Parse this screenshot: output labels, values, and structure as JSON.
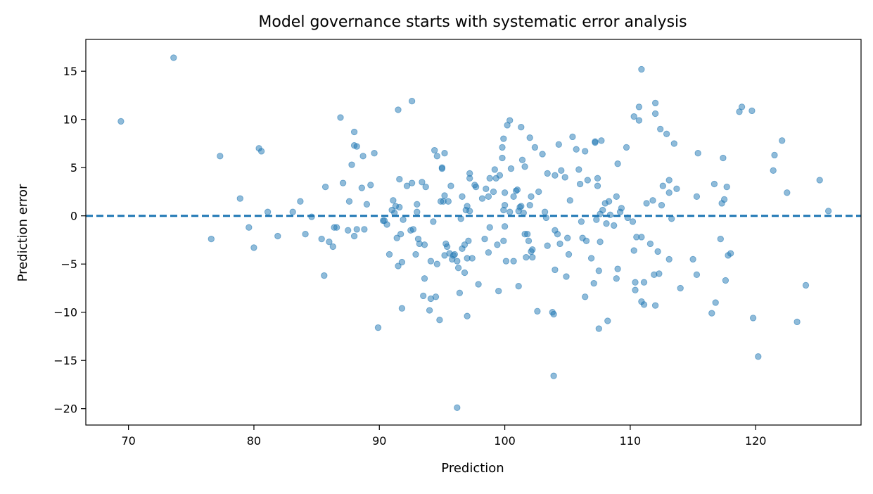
{
  "chart_data": {
    "type": "scatter",
    "title": "Model governance starts with systematic error analysis",
    "xlabel": "Prediction",
    "ylabel": "Prediction error",
    "xlim": [
      66.6,
      128.4
    ],
    "ylim": [
      -21.7,
      18.3
    ],
    "xticks": [
      70,
      80,
      90,
      100,
      110,
      120
    ],
    "yticks": [
      15,
      10,
      5,
      0,
      -5,
      -10,
      -15,
      -20
    ],
    "xtick_labels": [
      "70",
      "80",
      "90",
      "100",
      "110",
      "120"
    ],
    "ytick_labels": [
      "15",
      "10",
      "5",
      "0",
      "−5",
      "−10",
      "−15",
      "−20"
    ],
    "reference_line": {
      "y": 0,
      "style": "dashed"
    },
    "colors": {
      "points": "#1f77b4",
      "reference_line": "#1f77b4"
    },
    "grid": false,
    "legend": "none",
    "points": [
      [
        69.4,
        9.8
      ],
      [
        73.6,
        16.4
      ],
      [
        76.6,
        -2.4
      ],
      [
        77.3,
        6.2
      ],
      [
        78.9,
        1.8
      ],
      [
        79.6,
        -1.2
      ],
      [
        80.0,
        -3.3
      ],
      [
        80.4,
        7.0
      ],
      [
        80.6,
        6.7
      ],
      [
        81.1,
        0.4
      ],
      [
        81.9,
        -2.1
      ],
      [
        83.1,
        0.4
      ],
      [
        83.7,
        1.5
      ],
      [
        84.1,
        -1.9
      ],
      [
        84.6,
        -0.1
      ],
      [
        85.4,
        -2.4
      ],
      [
        85.6,
        -6.2
      ],
      [
        85.7,
        3.0
      ],
      [
        86.0,
        -2.7
      ],
      [
        86.3,
        -3.2
      ],
      [
        86.4,
        -1.2
      ],
      [
        86.6,
        -1.2
      ],
      [
        86.9,
        10.2
      ],
      [
        87.1,
        3.4
      ],
      [
        87.5,
        -1.5
      ],
      [
        87.6,
        1.5
      ],
      [
        87.8,
        5.3
      ],
      [
        88.0,
        8.7
      ],
      [
        88.0,
        7.3
      ],
      [
        88.0,
        -2.1
      ],
      [
        88.2,
        7.2
      ],
      [
        88.2,
        -1.4
      ],
      [
        88.6,
        2.9
      ],
      [
        88.7,
        6.2
      ],
      [
        88.8,
        -1.4
      ],
      [
        89.0,
        1.2
      ],
      [
        89.3,
        3.2
      ],
      [
        89.6,
        6.5
      ],
      [
        89.9,
        -11.6
      ],
      [
        90.3,
        -0.5
      ],
      [
        90.4,
        -0.5
      ],
      [
        90.6,
        -0.9
      ],
      [
        90.8,
        -4.0
      ],
      [
        91.0,
        0.6
      ],
      [
        91.1,
        1.6
      ],
      [
        91.2,
        0.3
      ],
      [
        91.3,
        1.0
      ],
      [
        91.4,
        -2.3
      ],
      [
        91.5,
        11.0
      ],
      [
        91.5,
        -5.2
      ],
      [
        91.6,
        0.9
      ],
      [
        91.6,
        3.8
      ],
      [
        91.7,
        -1.9
      ],
      [
        91.8,
        -4.8
      ],
      [
        91.8,
        -9.6
      ],
      [
        91.9,
        -0.4
      ],
      [
        92.2,
        3.1
      ],
      [
        92.5,
        -1.5
      ],
      [
        92.6,
        11.9
      ],
      [
        92.6,
        3.4
      ],
      [
        92.7,
        -1.4
      ],
      [
        92.9,
        -4.0
      ],
      [
        93.0,
        0.4
      ],
      [
        93.0,
        1.2
      ],
      [
        93.1,
        -2.4
      ],
      [
        93.2,
        -2.9
      ],
      [
        93.4,
        3.5
      ],
      [
        93.5,
        -8.3
      ],
      [
        93.6,
        -3.0
      ],
      [
        93.6,
        -6.5
      ],
      [
        93.7,
        3.0
      ],
      [
        94.0,
        -9.8
      ],
      [
        94.1,
        -4.7
      ],
      [
        94.1,
        -8.6
      ],
      [
        94.3,
        -0.6
      ],
      [
        94.4,
        6.8
      ],
      [
        94.5,
        -8.4
      ],
      [
        94.6,
        6.2
      ],
      [
        94.6,
        -5.0
      ],
      [
        94.8,
        -10.8
      ],
      [
        94.9,
        1.5
      ],
      [
        95.0,
        4.9
      ],
      [
        95.0,
        5.0
      ],
      [
        95.1,
        1.5
      ],
      [
        95.2,
        -4.1
      ],
      [
        95.2,
        6.5
      ],
      [
        95.2,
        2.1
      ],
      [
        95.3,
        -2.9
      ],
      [
        95.4,
        -3.2
      ],
      [
        95.5,
        1.5
      ],
      [
        95.6,
        -3.9
      ],
      [
        95.7,
        3.1
      ],
      [
        95.8,
        -4.5
      ],
      [
        95.9,
        -4.1
      ],
      [
        96.0,
        -4.0
      ],
      [
        96.2,
        -4.7
      ],
      [
        96.2,
        -19.9
      ],
      [
        96.3,
        -5.4
      ],
      [
        96.4,
        -8.0
      ],
      [
        96.5,
        -0.3
      ],
      [
        96.6,
        -3.4
      ],
      [
        96.6,
        2.0
      ],
      [
        96.8,
        -3.0
      ],
      [
        96.8,
        -5.9
      ],
      [
        96.9,
        0.6
      ],
      [
        97.0,
        -10.4
      ],
      [
        97.0,
        -4.4
      ],
      [
        97.0,
        1.0
      ],
      [
        97.1,
        -2.6
      ],
      [
        97.2,
        0.5
      ],
      [
        97.2,
        3.9
      ],
      [
        97.2,
        4.4
      ],
      [
        97.4,
        -4.4
      ],
      [
        97.6,
        3.2
      ],
      [
        97.7,
        3.0
      ],
      [
        97.9,
        -7.1
      ],
      [
        98.2,
        1.8
      ],
      [
        98.4,
        -2.4
      ],
      [
        98.5,
        2.8
      ],
      [
        98.7,
        2.0
      ],
      [
        98.7,
        -3.8
      ],
      [
        98.8,
        3.9
      ],
      [
        98.8,
        -1.2
      ],
      [
        99.1,
        2.5
      ],
      [
        99.2,
        4.8
      ],
      [
        99.3,
        3.9
      ],
      [
        99.4,
        -3.0
      ],
      [
        99.5,
        -7.8
      ],
      [
        99.6,
        4.2
      ],
      [
        99.8,
        6.0
      ],
      [
        99.8,
        7.1
      ],
      [
        99.9,
        0.6
      ],
      [
        99.9,
        8.0
      ],
      [
        99.9,
        -2.6
      ],
      [
        100.0,
        1.1
      ],
      [
        100.0,
        -1.1
      ],
      [
        100.0,
        2.4
      ],
      [
        100.1,
        -4.7
      ],
      [
        100.2,
        9.4
      ],
      [
        100.4,
        9.9
      ],
      [
        100.4,
        0.4
      ],
      [
        100.5,
        4.9
      ],
      [
        100.7,
        2.0
      ],
      [
        100.7,
        -4.7
      ],
      [
        100.9,
        2.6
      ],
      [
        101.0,
        2.7
      ],
      [
        101.1,
        -7.3
      ],
      [
        101.1,
        0.5
      ],
      [
        101.2,
        0.9
      ],
      [
        101.3,
        9.2
      ],
      [
        101.3,
        1.0
      ],
      [
        101.4,
        5.8
      ],
      [
        101.5,
        0.3
      ],
      [
        101.6,
        5.1
      ],
      [
        101.6,
        -1.9
      ],
      [
        101.7,
        -4.3
      ],
      [
        101.8,
        -1.9
      ],
      [
        101.9,
        -2.6
      ],
      [
        102.0,
        1.1
      ],
      [
        102.0,
        8.1
      ],
      [
        102.1,
        2.0
      ],
      [
        102.1,
        -3.7
      ],
      [
        102.2,
        -3.5
      ],
      [
        102.2,
        -4.3
      ],
      [
        102.4,
        7.1
      ],
      [
        102.6,
        -9.9
      ],
      [
        102.7,
        2.5
      ],
      [
        103.0,
        6.4
      ],
      [
        103.2,
        0.4
      ],
      [
        103.3,
        -0.2
      ],
      [
        103.4,
        4.4
      ],
      [
        103.4,
        -3.1
      ],
      [
        103.8,
        -10.0
      ],
      [
        103.9,
        -10.2
      ],
      [
        103.9,
        -16.6
      ],
      [
        104.0,
        4.2
      ],
      [
        104.0,
        -5.6
      ],
      [
        104.0,
        -1.5
      ],
      [
        104.2,
        -1.9
      ],
      [
        104.3,
        7.4
      ],
      [
        104.4,
        -2.9
      ],
      [
        104.5,
        4.7
      ],
      [
        104.8,
        4.0
      ],
      [
        104.9,
        -6.3
      ],
      [
        105.0,
        -2.3
      ],
      [
        105.1,
        -4.0
      ],
      [
        105.2,
        1.6
      ],
      [
        105.4,
        8.2
      ],
      [
        105.7,
        6.9
      ],
      [
        105.9,
        4.8
      ],
      [
        106.0,
        3.3
      ],
      [
        106.1,
        -0.6
      ],
      [
        106.2,
        -2.3
      ],
      [
        106.4,
        6.7
      ],
      [
        106.4,
        -8.4
      ],
      [
        106.5,
        -2.6
      ],
      [
        106.6,
        3.7
      ],
      [
        106.9,
        -4.4
      ],
      [
        107.1,
        -7.0
      ],
      [
        107.2,
        7.6
      ],
      [
        107.2,
        7.7
      ],
      [
        107.3,
        -0.4
      ],
      [
        107.4,
        3.9
      ],
      [
        107.4,
        3.1
      ],
      [
        107.5,
        -5.7
      ],
      [
        107.5,
        -11.7
      ],
      [
        107.6,
        -2.7
      ],
      [
        107.6,
        0.2
      ],
      [
        107.7,
        7.8
      ],
      [
        107.8,
        0.6
      ],
      [
        108.0,
        1.3
      ],
      [
        108.1,
        -0.8
      ],
      [
        108.2,
        -10.9
      ],
      [
        108.3,
        1.5
      ],
      [
        108.4,
        0.1
      ],
      [
        108.7,
        -1.0
      ],
      [
        108.9,
        -6.5
      ],
      [
        108.9,
        2.0
      ],
      [
        109.0,
        -5.5
      ],
      [
        109.0,
        5.4
      ],
      [
        109.2,
        0.4
      ],
      [
        109.3,
        0.8
      ],
      [
        109.7,
        7.1
      ],
      [
        109.8,
        -0.2
      ],
      [
        110.2,
        -0.6
      ],
      [
        110.3,
        10.3
      ],
      [
        110.3,
        -3.6
      ],
      [
        110.4,
        -6.9
      ],
      [
        110.4,
        -7.7
      ],
      [
        110.5,
        -2.2
      ],
      [
        110.7,
        11.3
      ],
      [
        110.7,
        9.9
      ],
      [
        110.9,
        -2.2
      ],
      [
        110.9,
        -8.9
      ],
      [
        110.9,
        15.2
      ],
      [
        111.1,
        -9.2
      ],
      [
        111.1,
        -6.9
      ],
      [
        111.3,
        1.3
      ],
      [
        111.6,
        -2.9
      ],
      [
        111.8,
        1.6
      ],
      [
        111.9,
        -6.1
      ],
      [
        112.0,
        11.7
      ],
      [
        112.0,
        -9.3
      ],
      [
        112.0,
        10.6
      ],
      [
        112.2,
        -3.7
      ],
      [
        112.3,
        -6.0
      ],
      [
        112.4,
        9.0
      ],
      [
        112.5,
        1.1
      ],
      [
        112.6,
        3.1
      ],
      [
        112.9,
        8.5
      ],
      [
        113.1,
        3.7
      ],
      [
        113.1,
        -4.5
      ],
      [
        113.1,
        2.4
      ],
      [
        113.3,
        -0.3
      ],
      [
        113.5,
        7.5
      ],
      [
        113.7,
        2.8
      ],
      [
        114.0,
        -7.5
      ],
      [
        115.0,
        -4.5
      ],
      [
        115.3,
        -6.1
      ],
      [
        115.3,
        2.0
      ],
      [
        115.4,
        6.5
      ],
      [
        116.5,
        -10.1
      ],
      [
        116.7,
        3.3
      ],
      [
        116.8,
        -9.0
      ],
      [
        117.2,
        -2.4
      ],
      [
        117.3,
        1.3
      ],
      [
        117.4,
        6.0
      ],
      [
        117.5,
        1.7
      ],
      [
        117.6,
        -6.7
      ],
      [
        117.7,
        3.0
      ],
      [
        117.8,
        -4.1
      ],
      [
        118.0,
        -3.9
      ],
      [
        118.7,
        10.8
      ],
      [
        118.9,
        11.3
      ],
      [
        119.7,
        10.9
      ],
      [
        119.8,
        -10.6
      ],
      [
        120.2,
        -14.6
      ],
      [
        121.4,
        4.7
      ],
      [
        121.5,
        6.3
      ],
      [
        122.1,
        7.8
      ],
      [
        122.5,
        2.4
      ],
      [
        123.3,
        -11.0
      ],
      [
        124.0,
        -7.2
      ],
      [
        125.1,
        3.7
      ],
      [
        125.8,
        0.5
      ]
    ]
  }
}
